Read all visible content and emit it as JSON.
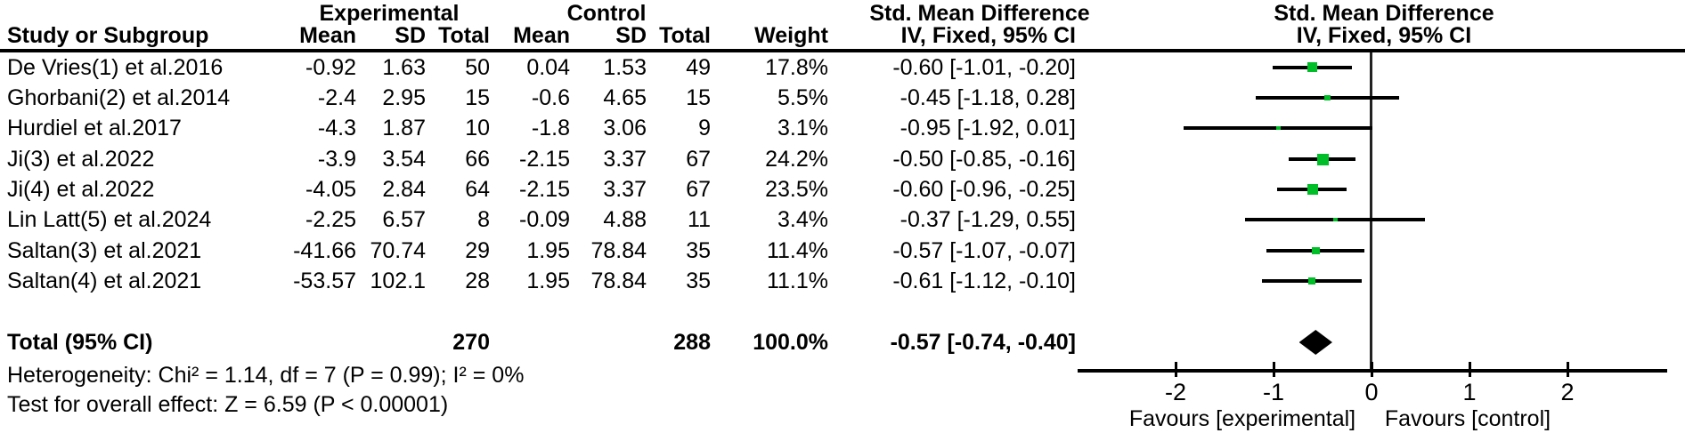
{
  "table": {
    "headers": {
      "experimental_group": "Experimental",
      "control_group": "Control",
      "smd_left": "Std. Mean Difference",
      "smd_right": "Std. Mean Difference",
      "study": "Study or Subgroup",
      "mean": "Mean",
      "sd": "SD",
      "total": "Total",
      "weight": "Weight",
      "method_left": "IV, Fixed, 95% CI",
      "method_right": "IV, Fixed, 95% CI"
    }
  },
  "footer": {
    "heterogeneity": "Heterogeneity: Chi² = 1.14, df = 7 (P = 0.99); I² = 0%",
    "overall_effect": "Test for overall effect: Z = 6.59 (P < 0.00001)"
  },
  "colors": {
    "marker_green": "#00be28",
    "diamond_black": "#000000",
    "line_black": "#000000",
    "zero_line": "#222222"
  },
  "chart_data": {
    "type": "scatter",
    "variant": "forest-plot-fixed-effects-meta-analysis",
    "effect_measure": "Std. Mean Difference, IV, Fixed, 95% CI",
    "axis": {
      "xlim": [
        -3,
        3
      ],
      "ticks": [
        -2,
        -1,
        0,
        1,
        2
      ],
      "favours_left": "Favours [experimental]",
      "favours_right": "Favours [control]"
    },
    "studies": [
      {
        "smd": -0.6,
        "ci": [
          -1.01,
          -0.2
        ],
        "weight_pct": 17.8,
        "cells": {
          "study": "De Vries(1) et al.2016",
          "exp_mean": "-0.92",
          "exp_sd": "1.63",
          "exp_total": "50",
          "ctrl_mean": "0.04",
          "ctrl_sd": "1.53",
          "ctrl_total": "49",
          "weight": "17.8%",
          "ci": "-0.60 [-1.01, -0.20]"
        }
      },
      {
        "smd": -0.45,
        "ci": [
          -1.18,
          0.28
        ],
        "weight_pct": 5.5,
        "cells": {
          "study": "Ghorbani(2) et al.2014",
          "exp_mean": "-2.4",
          "exp_sd": "2.95",
          "exp_total": "15",
          "ctrl_mean": "-0.6",
          "ctrl_sd": "4.65",
          "ctrl_total": "15",
          "weight": "5.5%",
          "ci": "-0.45 [-1.18, 0.28]"
        }
      },
      {
        "smd": -0.95,
        "ci": [
          -1.92,
          0.01
        ],
        "weight_pct": 3.1,
        "cells": {
          "study": "Hurdiel et al.2017",
          "exp_mean": "-4.3",
          "exp_sd": "1.87",
          "exp_total": "10",
          "ctrl_mean": "-1.8",
          "ctrl_sd": "3.06",
          "ctrl_total": "9",
          "weight": "3.1%",
          "ci": "-0.95 [-1.92, 0.01]"
        }
      },
      {
        "smd": -0.5,
        "ci": [
          -0.85,
          -0.16
        ],
        "weight_pct": 24.2,
        "cells": {
          "study": "Ji(3) et al.2022",
          "exp_mean": "-3.9",
          "exp_sd": "3.54",
          "exp_total": "66",
          "ctrl_mean": "-2.15",
          "ctrl_sd": "3.37",
          "ctrl_total": "67",
          "weight": "24.2%",
          "ci": "-0.50 [-0.85, -0.16]"
        }
      },
      {
        "smd": -0.6,
        "ci": [
          -0.96,
          -0.25
        ],
        "weight_pct": 23.5,
        "cells": {
          "study": "Ji(4) et al.2022",
          "exp_mean": "-4.05",
          "exp_sd": "2.84",
          "exp_total": "64",
          "ctrl_mean": "-2.15",
          "ctrl_sd": "3.37",
          "ctrl_total": "67",
          "weight": "23.5%",
          "ci": "-0.60 [-0.96, -0.25]"
        }
      },
      {
        "smd": -0.37,
        "ci": [
          -1.29,
          0.55
        ],
        "weight_pct": 3.4,
        "cells": {
          "study": "Lin Latt(5) et al.2024",
          "exp_mean": "-2.25",
          "exp_sd": "6.57",
          "exp_total": "8",
          "ctrl_mean": "-0.09",
          "ctrl_sd": "4.88",
          "ctrl_total": "11",
          "weight": "3.4%",
          "ci": "-0.37 [-1.29, 0.55]"
        }
      },
      {
        "smd": -0.57,
        "ci": [
          -1.07,
          -0.07
        ],
        "weight_pct": 11.4,
        "cells": {
          "study": "Saltan(3) et al.2021",
          "exp_mean": "-41.66",
          "exp_sd": "70.74",
          "exp_total": "29",
          "ctrl_mean": "1.95",
          "ctrl_sd": "78.84",
          "ctrl_total": "35",
          "weight": "11.4%",
          "ci": "-0.57 [-1.07, -0.07]"
        }
      },
      {
        "smd": -0.61,
        "ci": [
          -1.12,
          -0.1
        ],
        "weight_pct": 11.1,
        "cells": {
          "study": "Saltan(4) et al.2021",
          "exp_mean": "-53.57",
          "exp_sd": "102.1",
          "exp_total": "28",
          "ctrl_mean": "1.95",
          "ctrl_sd": "78.84",
          "ctrl_total": "35",
          "weight": "11.1%",
          "ci": "-0.61 [-1.12, -0.10]"
        }
      }
    ],
    "total": {
      "smd": -0.57,
      "ci": [
        -0.74,
        -0.4
      ],
      "cells": {
        "study": "Total (95% CI)",
        "exp_total": "270",
        "ctrl_total": "288",
        "weight": "100.0%",
        "ci": "-0.57 [-0.74, -0.40]"
      }
    },
    "stats": {
      "chi2": 1.14,
      "df": 7,
      "p_heterogeneity": 0.99,
      "i2": "0%",
      "z": 6.59,
      "p_overall": "< 0.00001"
    }
  }
}
